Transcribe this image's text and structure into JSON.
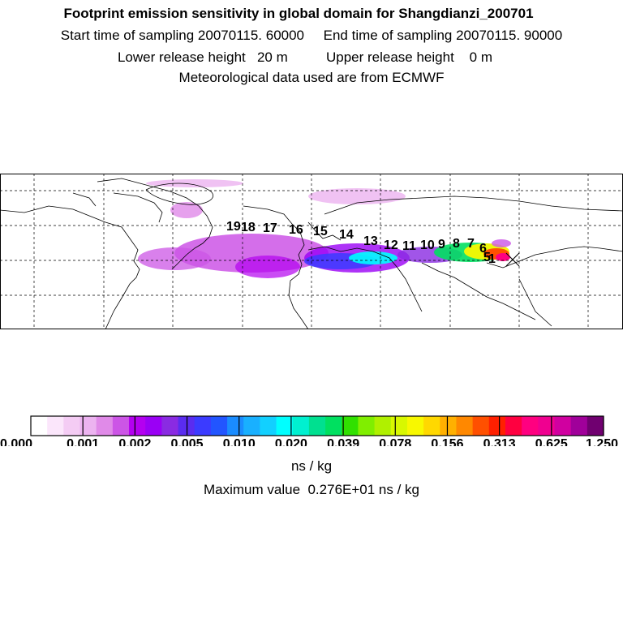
{
  "header": {
    "title": "Footprint emission sensitivity in global domain for Shangdianzi_200701",
    "sampling": "Start time of sampling 20070115. 60000     End time of sampling 20070115. 90000",
    "release": "Lower release height   20 m          Upper release height    0 m",
    "met": "Meteorological data used are from ECMWF"
  },
  "map": {
    "trajectory_labels": [
      "19",
      "18",
      "17",
      "16",
      "15",
      "14",
      "13",
      "12",
      "11",
      "10",
      "9",
      "8",
      "7",
      "6",
      "5",
      "1"
    ],
    "receptor_marker": "x"
  },
  "colorbar": {
    "tick_labels": [
      "0.000",
      "0.001",
      "0.002",
      "0.005",
      "0.010",
      "0.020",
      "0.039",
      "0.078",
      "0.156",
      "0.313",
      "0.625",
      "1.250"
    ],
    "colors": [
      "#ffffff",
      "#fbe6fb",
      "#f4ccf4",
      "#ecb3f0",
      "#e08ae8",
      "#cc55e6",
      "#b400f0",
      "#9a00f5",
      "#8a2be2",
      "#5a2cf0",
      "#3b3bff",
      "#2255ff",
      "#1a8cff",
      "#19b0ff",
      "#12d0ff",
      "#00ffff",
      "#00f0d0",
      "#00e090",
      "#00e060",
      "#30e000",
      "#80ee00",
      "#b0f000",
      "#d8f800",
      "#f8f800",
      "#ffd800",
      "#ffb000",
      "#ff8800",
      "#ff5000",
      "#ff2000",
      "#ff0040",
      "#ff0080",
      "#f00090",
      "#d000a0",
      "#a0009a",
      "#700070"
    ],
    "units": "ns / kg",
    "max_label": "Maximum value  0.276E+01 ns / kg"
  },
  "colors": {
    "map_border": "#000000",
    "grid": "#000000",
    "coast": "#000000",
    "plume_low": "#cc55e6",
    "plume_mid": "#00ffff",
    "plume_high": "#ff0080"
  }
}
